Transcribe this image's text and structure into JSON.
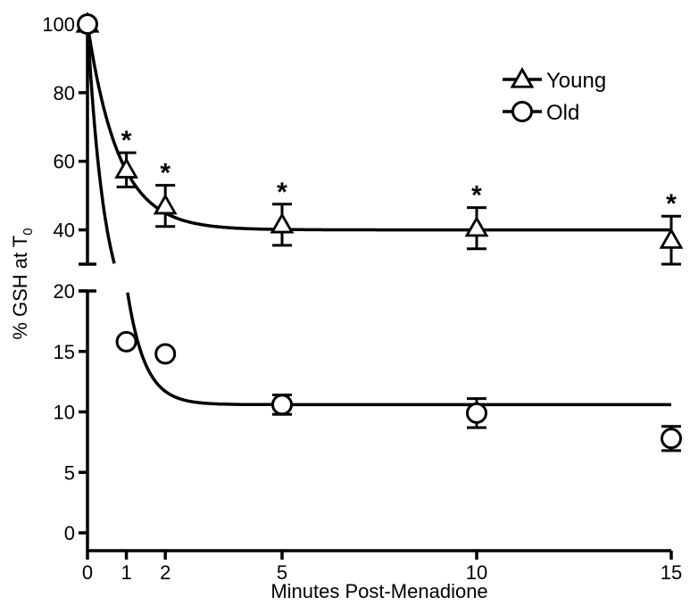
{
  "chart_data": {
    "type": "scatter",
    "title": "",
    "xlabel": "Minutes Post-Menadione",
    "ylabel": "% GSH at T0",
    "ylabel_main": "% GSH at T",
    "ylabel_sub": "0",
    "x_ticks": [
      0,
      1,
      2,
      5,
      10,
      15
    ],
    "y_axis_broken": true,
    "y_upper_range": [
      30,
      100
    ],
    "y_upper_ticks": [
      40,
      60,
      80,
      100
    ],
    "y_lower_range": [
      0,
      20
    ],
    "y_lower_ticks": [
      0,
      5,
      10,
      15,
      20
    ],
    "legend_position": "top-right",
    "grid": false,
    "series": [
      {
        "name": "Young",
        "marker": "triangle",
        "x": [
          0,
          1,
          2,
          5,
          10,
          15
        ],
        "y": [
          100,
          57.5,
          47,
          41.5,
          40.5,
          37
        ],
        "error": [
          0,
          5,
          6,
          6,
          6,
          7
        ],
        "significance": [
          "",
          "*",
          "*",
          "*",
          "*",
          "*"
        ],
        "fit": {
          "plateau": 40,
          "span": 60,
          "k": 1.25
        }
      },
      {
        "name": "Old",
        "marker": "circle",
        "x": [
          0,
          1,
          2,
          5,
          10,
          15
        ],
        "y": [
          100,
          15.8,
          14.8,
          10.6,
          9.9,
          7.8
        ],
        "error": [
          0,
          0,
          0,
          0.8,
          1.2,
          1.0
        ],
        "significance": [
          "",
          "",
          "",
          "",
          "",
          ""
        ],
        "fit": {
          "plateau": 10.6,
          "span": 89.4,
          "k": 2.2
        }
      }
    ]
  }
}
